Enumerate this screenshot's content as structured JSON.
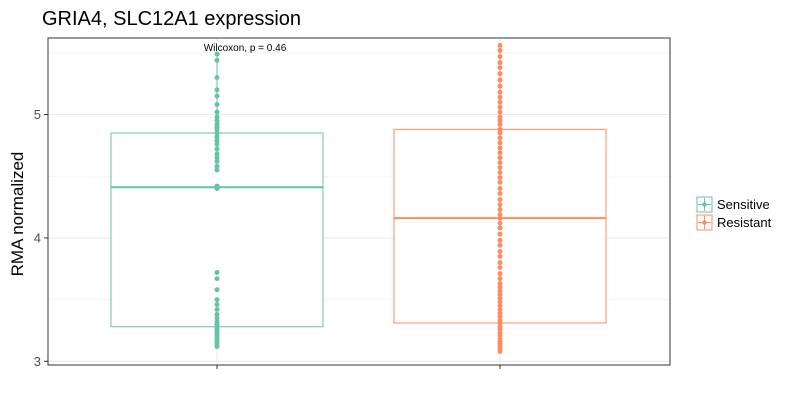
{
  "chart_data": {
    "type": "box",
    "title": "GRIA4, SLC12A1 expression",
    "xlabel": "",
    "ylabel": "RMA normalized",
    "ylim": [
      2.97,
      5.62
    ],
    "yticks": [
      3,
      4,
      5
    ],
    "grid": true,
    "legend_position": "right",
    "annotation": "Wilcoxon, p = 0.46",
    "series": [
      {
        "name": "Sensitive",
        "color": "#66c2a5",
        "box": {
          "q1": 3.28,
          "median": 4.41,
          "q3": 4.85,
          "whisker_low": 3.12,
          "whisker_high": 5.49
        },
        "points": [
          5.49,
          5.44,
          5.3,
          5.2,
          5.15,
          5.08,
          5.02,
          4.98,
          4.95,
          4.92,
          4.9,
          4.88,
          4.85,
          4.82,
          4.79,
          4.76,
          4.72,
          4.68,
          4.65,
          4.62,
          4.58,
          4.55,
          4.42,
          4.4,
          3.72,
          3.67,
          3.58,
          3.5,
          3.46,
          3.42,
          3.38,
          3.35,
          3.32,
          3.3,
          3.28,
          3.26,
          3.24,
          3.22,
          3.2,
          3.18,
          3.16,
          3.14,
          3.12
        ]
      },
      {
        "name": "Resistant",
        "color": "#fc8d62",
        "box": {
          "q1": 3.31,
          "median": 4.16,
          "q3": 4.88,
          "whisker_low": 3.08,
          "whisker_high": 5.56
        },
        "points": [
          5.56,
          5.52,
          5.47,
          5.42,
          5.38,
          5.33,
          5.28,
          5.23,
          5.18,
          5.14,
          5.1,
          5.06,
          5.02,
          4.98,
          4.95,
          4.92,
          4.88,
          4.85,
          4.81,
          4.77,
          4.73,
          4.69,
          4.65,
          4.61,
          4.57,
          4.53,
          4.49,
          4.45,
          4.4,
          4.36,
          4.31,
          4.27,
          4.23,
          4.19,
          4.16,
          4.12,
          4.08,
          4.03,
          3.98,
          3.94,
          3.89,
          3.85,
          3.8,
          3.76,
          3.71,
          3.67,
          3.63,
          3.6,
          3.57,
          3.54,
          3.51,
          3.48,
          3.45,
          3.42,
          3.39,
          3.36,
          3.33,
          3.31,
          3.28,
          3.26,
          3.23,
          3.21,
          3.18,
          3.16,
          3.14,
          3.12,
          3.1,
          3.08
        ]
      }
    ]
  }
}
